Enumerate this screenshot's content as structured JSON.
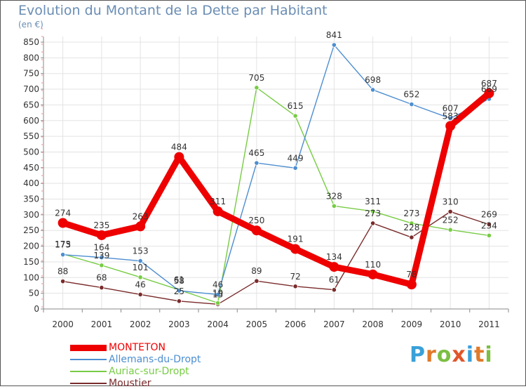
{
  "title": "Evolution du Montant de la Dette par Habitant",
  "subtitle": "(en €)",
  "logo": {
    "letters": [
      "P",
      "r",
      "o",
      "x",
      "i",
      "t",
      "i"
    ],
    "colors": [
      "#3aa0d8",
      "#e07a2a",
      "#7cbf42",
      "#e0562a",
      "#3aa0d8",
      "#e07a2a",
      "#7cbf42"
    ]
  },
  "chart_data": {
    "type": "line",
    "title": "Evolution du Montant de la Dette par Habitant",
    "ylabel": "(en €)",
    "x": [
      "2000",
      "2001",
      "2002",
      "2003",
      "2004",
      "2005",
      "2006",
      "2007",
      "2008",
      "2009",
      "2010",
      "2011"
    ],
    "ylim": [
      0,
      850
    ],
    "yticks": [
      "0",
      "50",
      "100",
      "150",
      "200",
      "250",
      "300",
      "350",
      "400",
      "450",
      "500",
      "550",
      "600",
      "650",
      "700",
      "750",
      "800",
      "850"
    ],
    "grid": true,
    "series": [
      {
        "name": "MONTETON",
        "color": "#ee0000",
        "values": [
          274,
          235,
          263,
          484,
          311,
          250,
          191,
          134,
          110,
          78,
          583,
          687
        ]
      },
      {
        "name": "Allemans-du-Dropt",
        "color": "#4d8ed0",
        "values": [
          173,
          164,
          153,
          58,
          46,
          465,
          449,
          841,
          698,
          652,
          607,
          669
        ]
      },
      {
        "name": "Auriac-sur-Dropt",
        "color": "#77cc44",
        "values": [
          175,
          139,
          101,
          61,
          19,
          705,
          615,
          328,
          311,
          273,
          252,
          234
        ]
      },
      {
        "name": "Moustier",
        "color": "#7a2b2b",
        "values": [
          88,
          68,
          46,
          25,
          15,
          89,
          72,
          61,
          273,
          228,
          310,
          269
        ]
      }
    ]
  }
}
